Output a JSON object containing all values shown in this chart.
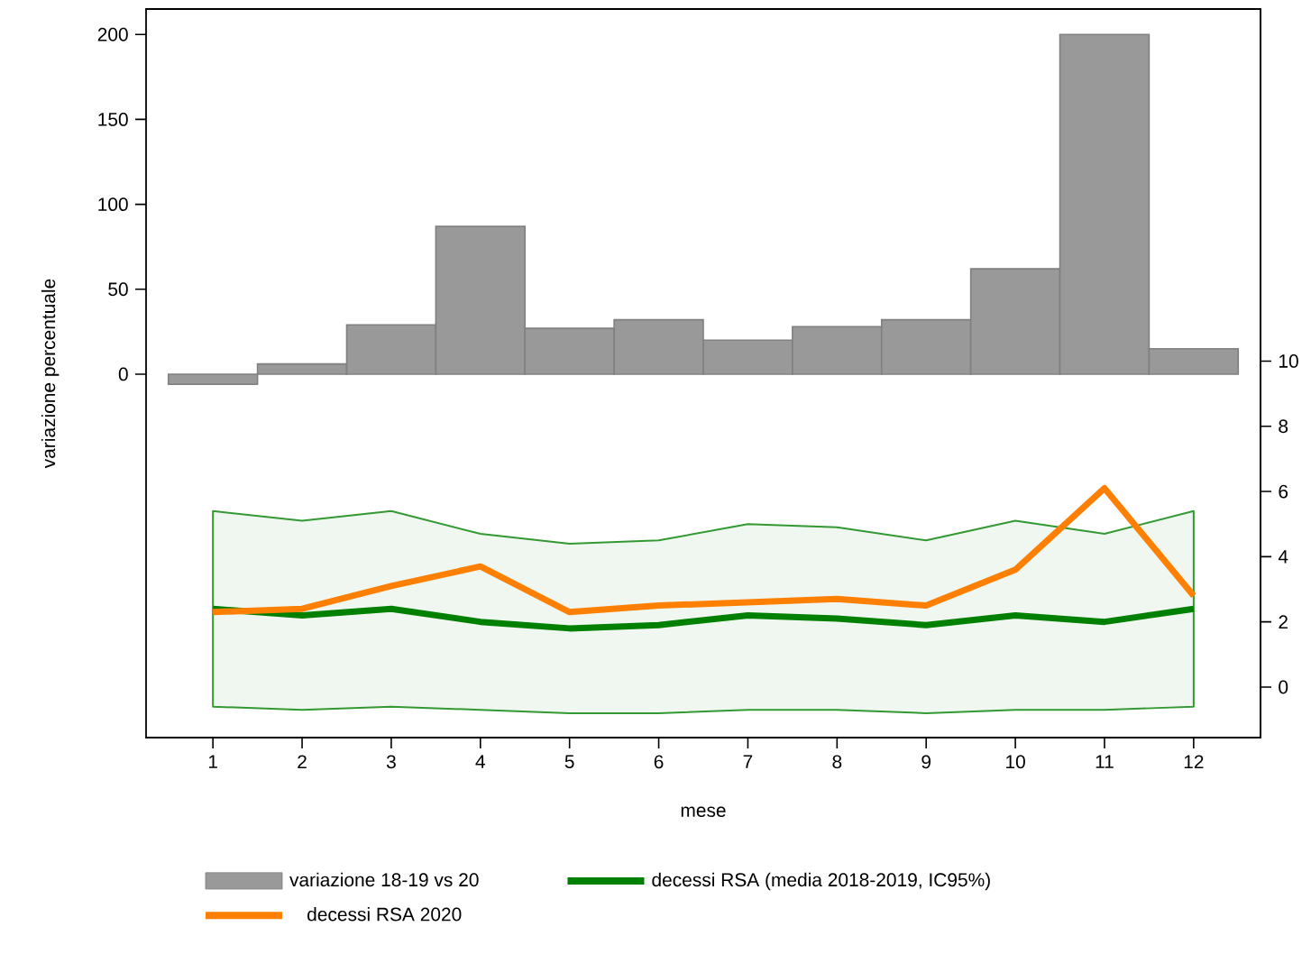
{
  "chart_data": {
    "type": "bar",
    "x": [
      1,
      2,
      3,
      4,
      5,
      6,
      7,
      8,
      9,
      10,
      11,
      12
    ],
    "series": [
      {
        "name": "variazione 18-19 vs 20",
        "axis": "y",
        "color": "#999999",
        "values": [
          -6,
          6,
          29,
          87,
          27,
          32,
          20,
          28,
          32,
          62,
          200,
          15
        ]
      },
      {
        "name": "decessi RSA (media 2018-2019, IC95%)",
        "type": "line",
        "axis": "y2",
        "color": "#008000",
        "values": [
          2.4,
          2.2,
          2.4,
          2.0,
          1.8,
          1.9,
          2.2,
          2.1,
          1.9,
          2.2,
          2.0,
          2.4
        ],
        "lower": [
          -0.6,
          -0.7,
          -0.6,
          -0.7,
          -0.8,
          -0.8,
          -0.7,
          -0.7,
          -0.8,
          -0.7,
          -0.7,
          -0.6
        ],
        "upper": [
          5.4,
          5.1,
          5.4,
          4.7,
          4.4,
          4.5,
          5.0,
          4.9,
          4.5,
          5.1,
          4.7,
          5.4
        ]
      },
      {
        "name": "decessi RSA 2020",
        "type": "line",
        "axis": "y2",
        "color": "#ff8000",
        "values": [
          2.3,
          2.4,
          3.1,
          3.7,
          2.3,
          2.5,
          2.6,
          2.7,
          2.5,
          3.6,
          6.1,
          2.8
        ]
      }
    ],
    "xlabel": "mese",
    "ylabel": "variazione percentuale",
    "xlim": [
      0.25,
      12.75
    ],
    "xticks": [
      1,
      2,
      3,
      4,
      5,
      6,
      7,
      8,
      9,
      10,
      11,
      12
    ],
    "ylim": [
      -214,
      215
    ],
    "yticks": [
      0,
      50,
      100,
      150,
      200
    ],
    "y2lim": [
      -1.55,
      20.8
    ],
    "y2ticks": [
      0,
      2,
      4,
      6,
      8,
      10
    ],
    "legend": "bottom"
  }
}
